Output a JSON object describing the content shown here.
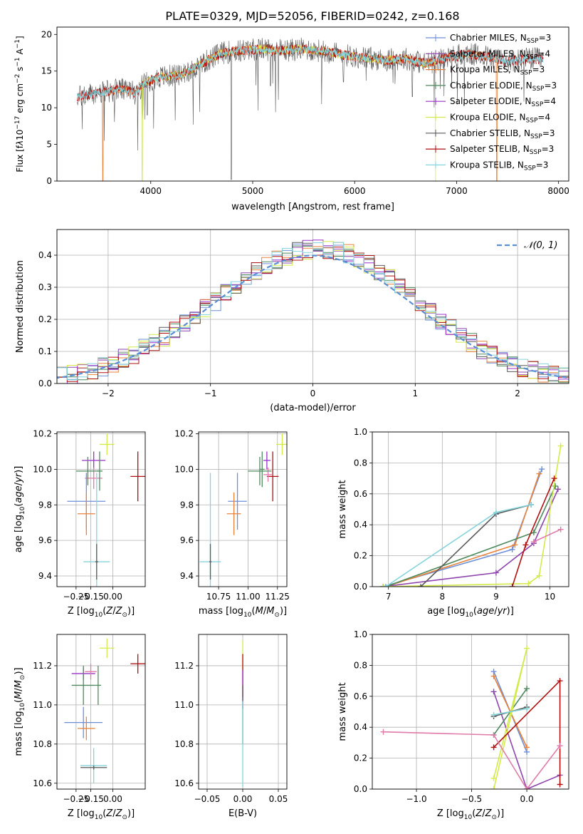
{
  "figure": {
    "title": "PLATE=0329, MJD=52056, FIBERID=0242, z=0.168"
  },
  "colors": {
    "chabrier_miles": "#6d8fd9",
    "salpeter_miles": "#8e44ad",
    "kroupa_miles": "#e8823a",
    "chabrier_elodie": "#4e8a5e",
    "salpeter_elodie": "#9b30c8",
    "kroupa_elodie": "#d4ea4b",
    "chabrier_stelib": "#5a5a5a",
    "salpeter_stelib": "#b01010",
    "kroupa_stelib": "#86d4db",
    "pink": "#e07aa8",
    "gaussian": "#5b8ed6"
  },
  "chart_data": [
    {
      "id": "spectrum",
      "type": "line",
      "xlabel": "wavelength [Angstrom, rest frame]",
      "ylabel_html": "Flux [f<tspan font-style=\"italic\">λ</tspan>10<tspan dy=\"-5\" font-size=\"9\">−17</tspan><tspan dy=\"5\"> erg cm</tspan><tspan dy=\"-5\" font-size=\"9\">−2</tspan><tspan dy=\"5\"> s</tspan><tspan dy=\"-5\" font-size=\"9\">−1</tspan><tspan dy=\"5\"> A</tspan><tspan dy=\"-5\" font-size=\"9\">−1</tspan><tspan dy=\"5\">]</tspan>",
      "xlim": [
        3080,
        8100
      ],
      "ylim": [
        0,
        21
      ],
      "xticks": [
        4000,
        5000,
        6000,
        7000,
        8000
      ],
      "yticks": [
        0,
        5,
        10,
        15,
        20
      ],
      "grid": false,
      "legend_placement": "right",
      "legend": [
        {
          "label": "Chabrier MILES, N",
          "sub": "SSP",
          "suffix": "=3",
          "color_key": "chabrier_miles"
        },
        {
          "label": "Salpeter MILES, N",
          "sub": "SSP",
          "suffix": "=4",
          "color_key": "salpeter_miles"
        },
        {
          "label": "Kroupa MILES, N",
          "sub": "SSP",
          "suffix": "=3",
          "color_key": "kroupa_miles"
        },
        {
          "label": "Chabrier ELODIE, N",
          "sub": "SSP",
          "suffix": "=3",
          "color_key": "chabrier_elodie"
        },
        {
          "label": "Salpeter ELODIE, N",
          "sub": "SSP",
          "suffix": "=4",
          "color_key": "salpeter_elodie"
        },
        {
          "label": "Kroupa ELODIE, N",
          "sub": "SSP",
          "suffix": "=4",
          "color_key": "kroupa_elodie"
        },
        {
          "label": "Chabrier STELIB, N",
          "sub": "SSP",
          "suffix": "=3",
          "color_key": "chabrier_stelib"
        },
        {
          "label": "Salpeter STELIB, N",
          "sub": "SSP",
          "suffix": "=3",
          "color_key": "salpeter_stelib"
        },
        {
          "label": "Kroupa STELIB, N",
          "sub": "SSP",
          "suffix": "=3",
          "color_key": "kroupa_stelib"
        }
      ],
      "continuum": {
        "x": [
          3280,
          3500,
          3700,
          3850,
          3950,
          4100,
          4300,
          4500,
          4700,
          4900,
          5100,
          5300,
          5500,
          5700,
          5900,
          6100,
          6300,
          6500,
          6700,
          6900,
          7100,
          7300,
          7500,
          7700,
          7850
        ],
        "y": [
          11.5,
          12.0,
          12.5,
          12.0,
          13.5,
          14.2,
          14.5,
          16.0,
          17.5,
          17.8,
          18.0,
          17.8,
          18.0,
          17.7,
          17.2,
          16.8,
          16.5,
          16.7,
          16.0,
          16.8,
          17.3,
          17.0,
          16.3,
          16.7,
          16.6
        ]
      },
      "series": [
        {
          "name": "data",
          "x_start": 3280,
          "x_end": 7850,
          "noise": 1.6,
          "color_key": "chabrier_stelib",
          "drops": [
            [
              3920,
              8.5
            ],
            [
              3965,
              9.0
            ],
            [
              4790,
              0.2
            ],
            [
              5175,
              13.0
            ],
            [
              5890,
              13.5
            ],
            [
              6565,
              11.5
            ]
          ]
        },
        {
          "name": "Kroupa MILES",
          "x_start": 3520,
          "x_end": 7400,
          "noise": 0.6,
          "color_key": "kroupa_miles",
          "drops": [
            [
              3530,
              0.0
            ],
            [
              7395,
              0.0
            ]
          ]
        },
        {
          "name": "Kroupa ELODIE",
          "x_start": 3910,
          "x_end": 6800,
          "noise": 0.6,
          "color_key": "kroupa_elodie",
          "drops": [
            [
              3915,
              0.0
            ],
            [
              6795,
              0.0
            ]
          ]
        },
        {
          "name": "Salpeter STELIB",
          "x_start": 3280,
          "x_end": 7850,
          "noise": 0.7,
          "color_key": "salpeter_stelib",
          "drops": []
        },
        {
          "name": "Kroupa STELIB",
          "x_start": 3280,
          "x_end": 7850,
          "noise": 0.5,
          "color_key": "kroupa_stelib",
          "drops": []
        }
      ]
    },
    {
      "id": "residuals",
      "type": "histogram",
      "xlabel": "(data-model)/error",
      "ylabel": "Normed distribution",
      "xlim": [
        -2.5,
        2.5
      ],
      "ylim": [
        0,
        0.48
      ],
      "xticks": [
        -2,
        -1,
        0,
        1,
        2
      ],
      "yticks": [
        0.0,
        0.1,
        0.2,
        0.3,
        0.4
      ],
      "grid": true,
      "legend_placement": "upper right",
      "legend_label": "N(0,1)",
      "bin_width": 0.1,
      "n_series": 9
    },
    {
      "id": "age_vs_Z",
      "type": "errorbar",
      "xlabel": "Z [log10(Z/Z⊙)]",
      "ylabel": "age  [log10(age/yr)]",
      "xlim": [
        -0.38,
        0.22
      ],
      "ylim": [
        9.34,
        10.21
      ],
      "xticks": [
        -0.25,
        -0.15,
        0.0
      ],
      "xticklabels": [
        "−0.25",
        "−0.15",
        "0.00"
      ],
      "yticks": [
        9.4,
        9.6,
        9.8,
        10.0,
        10.2
      ],
      "grid": true,
      "points": [
        {
          "x": -0.04,
          "y": 10.14,
          "xerr": 0.05,
          "yerr": 0.06,
          "color_key": "kroupa_elodie"
        },
        {
          "x": 0.17,
          "y": 9.96,
          "xerr": 0.05,
          "yerr": 0.14,
          "color_key": "salpeter_stelib"
        },
        {
          "x": -0.13,
          "y": 10.05,
          "xerr": 0.08,
          "yerr": 0.05,
          "color_key": "salpeter_elodie"
        },
        {
          "x": -0.13,
          "y": 9.95,
          "xerr": 0.06,
          "yerr": 0.06,
          "color_key": "pink"
        },
        {
          "x": -0.17,
          "y": 9.99,
          "xerr": 0.08,
          "yerr": 0.08,
          "color_key": "chabrier_elodie"
        },
        {
          "x": -0.09,
          "y": 9.99,
          "xerr": 0.02,
          "yerr": 0.11,
          "color_key": "chabrier_elodie"
        },
        {
          "x": -0.18,
          "y": 9.82,
          "xerr": 0.13,
          "yerr": 0.16,
          "color_key": "chabrier_miles"
        },
        {
          "x": -0.18,
          "y": 9.75,
          "xerr": 0.06,
          "yerr": 0.12,
          "color_key": "kroupa_miles"
        },
        {
          "x": -0.11,
          "y": 9.48,
          "xerr": 0.09,
          "yerr": 0.5,
          "color_key": "kroupa_stelib"
        },
        {
          "x": -0.11,
          "y": 9.48,
          "xerr": 0.01,
          "yerr": 0.1,
          "color_key": "chabrier_stelib"
        }
      ]
    },
    {
      "id": "age_vs_mass",
      "type": "errorbar",
      "xlabel": "mass [log10(M/M⊙)]",
      "ylabel": "",
      "xlim": [
        10.58,
        11.33
      ],
      "ylim": [
        9.34,
        10.21
      ],
      "xticks": [
        10.75,
        11.0,
        11.25
      ],
      "xticklabels": [
        "10.75",
        "11.00",
        "11.25"
      ],
      "yticks": [
        9.4,
        9.6,
        9.8,
        10.0,
        10.2
      ],
      "grid": true,
      "points": [
        {
          "x": 11.29,
          "y": 10.14,
          "xerr": 0.05,
          "yerr": 0.06,
          "color_key": "kroupa_elodie"
        },
        {
          "x": 11.21,
          "y": 9.96,
          "xerr": 0.05,
          "yerr": 0.14,
          "color_key": "salpeter_stelib"
        },
        {
          "x": 11.16,
          "y": 10.05,
          "xerr": 0.03,
          "yerr": 0.05,
          "color_key": "salpeter_elodie"
        },
        {
          "x": 11.17,
          "y": 9.97,
          "xerr": 0.04,
          "yerr": 0.04,
          "color_key": "pink"
        },
        {
          "x": 11.1,
          "y": 9.99,
          "xerr": 0.1,
          "yerr": 0.08,
          "color_key": "chabrier_elodie"
        },
        {
          "x": 11.12,
          "y": 10.0,
          "xerr": 0.02,
          "yerr": 0.1,
          "color_key": "chabrier_elodie"
        },
        {
          "x": 10.91,
          "y": 9.82,
          "xerr": 0.08,
          "yerr": 0.16,
          "color_key": "chabrier_miles"
        },
        {
          "x": 10.88,
          "y": 9.75,
          "xerr": 0.06,
          "yerr": 0.12,
          "color_key": "kroupa_miles"
        },
        {
          "x": 10.68,
          "y": 9.48,
          "xerr": 0.09,
          "yerr": 0.5,
          "color_key": "kroupa_stelib"
        },
        {
          "x": 10.68,
          "y": 9.48,
          "xerr": 0.01,
          "yerr": 0.1,
          "color_key": "chabrier_stelib"
        }
      ]
    },
    {
      "id": "mw_vs_age",
      "type": "line",
      "xlabel": "age  [log10(age/yr)]",
      "ylabel": "mass weight",
      "xlim": [
        6.7,
        10.35
      ],
      "ylim": [
        0,
        1.0
      ],
      "xticks": [
        7,
        8,
        9,
        10
      ],
      "yticks": [
        0.0,
        0.2,
        0.4,
        0.6,
        0.8,
        1.0
      ],
      "grid": true,
      "series": [
        {
          "color_key": "chabrier_miles",
          "x": [
            6.9,
            9.3,
            9.85
          ],
          "y": [
            0.0,
            0.24,
            0.76
          ]
        },
        {
          "color_key": "kroupa_miles",
          "x": [
            6.95,
            9.35,
            9.8
          ],
          "y": [
            0.0,
            0.27,
            0.73
          ]
        },
        {
          "color_key": "salpeter_miles",
          "x": [
            6.9,
            9.0,
            9.7,
            10.15
          ],
          "y": [
            0.0,
            0.09,
            0.28,
            0.63
          ]
        },
        {
          "color_key": "chabrier_elodie",
          "x": [
            6.95,
            9.7,
            10.1
          ],
          "y": [
            0.0,
            0.35,
            0.65
          ]
        },
        {
          "color_key": "kroupa_elodie",
          "x": [
            6.9,
            9.6,
            9.8,
            10.2
          ],
          "y": [
            0.0,
            0.02,
            0.07,
            0.91
          ]
        },
        {
          "color_key": "salpeter_stelib",
          "x": [
            9.3,
            9.55,
            10.08
          ],
          "y": [
            0.0,
            0.27,
            0.7
          ]
        },
        {
          "color_key": "chabrier_stelib",
          "x": [
            7.6,
            9.0,
            9.65
          ],
          "y": [
            0.0,
            0.47,
            0.53
          ]
        },
        {
          "color_key": "kroupa_stelib",
          "x": [
            6.95,
            9.0,
            9.65
          ],
          "y": [
            0.0,
            0.48,
            0.53
          ]
        },
        {
          "color_key": "pink",
          "x": [
            9.7,
            10.2
          ],
          "y": [
            0.29,
            0.37
          ]
        }
      ]
    },
    {
      "id": "mass_vs_Z",
      "type": "errorbar",
      "xlabel": "Z [log10(Z/Z⊙)]",
      "ylabel": "mass [log10(M/M⊙)]",
      "xlim": [
        -0.38,
        0.22
      ],
      "ylim": [
        10.57,
        11.36
      ],
      "xticks": [
        -0.25,
        -0.15,
        0.0
      ],
      "xticklabels": [
        "−0.25",
        "−0.15",
        "0.00"
      ],
      "yticks": [
        10.6,
        10.8,
        11.0,
        11.2
      ],
      "grid": true,
      "points": [
        {
          "x": -0.04,
          "y": 11.29,
          "xerr": 0.05,
          "yerr": 0.05,
          "color_key": "kroupa_elodie"
        },
        {
          "x": 0.17,
          "y": 11.21,
          "xerr": 0.05,
          "yerr": 0.05,
          "color_key": "salpeter_stelib"
        },
        {
          "x": -0.2,
          "y": 11.16,
          "xerr": 0.08,
          "yerr": 0.03,
          "color_key": "salpeter_elodie"
        },
        {
          "x": -0.15,
          "y": 11.17,
          "xerr": 0.04,
          "yerr": 0.04,
          "color_key": "pink"
        },
        {
          "x": -0.2,
          "y": 11.1,
          "xerr": 0.08,
          "yerr": 0.1,
          "color_key": "chabrier_elodie"
        },
        {
          "x": -0.1,
          "y": 11.1,
          "xerr": 0.02,
          "yerr": 0.1,
          "color_key": "chabrier_elodie"
        },
        {
          "x": -0.2,
          "y": 10.91,
          "xerr": 0.13,
          "yerr": 0.08,
          "color_key": "chabrier_miles"
        },
        {
          "x": -0.18,
          "y": 10.88,
          "xerr": 0.06,
          "yerr": 0.06,
          "color_key": "kroupa_miles"
        },
        {
          "x": -0.13,
          "y": 10.69,
          "xerr": 0.09,
          "yerr": 0.09,
          "color_key": "kroupa_stelib"
        },
        {
          "x": -0.13,
          "y": 10.68,
          "xerr": 0.09,
          "yerr": 0.01,
          "color_key": "chabrier_stelib"
        }
      ]
    },
    {
      "id": "mass_vs_ebv",
      "type": "errorbar",
      "xlabel": "E(B-V)",
      "ylabel": "",
      "xlim": [
        -0.062,
        0.062
      ],
      "ylim": [
        10.57,
        11.36
      ],
      "xticks": [
        -0.05,
        0.0,
        0.05
      ],
      "xticklabels": [
        "−0.05",
        "0.00",
        "0.05"
      ],
      "yticks": [
        10.6,
        10.8,
        11.0,
        11.2
      ],
      "grid": true,
      "points": [
        {
          "x": 0.0,
          "y": 11.25,
          "xerr": 0.0,
          "yerr": 0.08,
          "color_key": "kroupa_elodie"
        },
        {
          "x": 0.0,
          "y": 11.15,
          "xerr": 0.0,
          "yerr": 0.11,
          "color_key": "salpeter_stelib"
        },
        {
          "x": 0.0,
          "y": 11.08,
          "xerr": 0.0,
          "yerr": 0.1,
          "color_key": "salpeter_elodie"
        },
        {
          "x": 0.0,
          "y": 10.95,
          "xerr": 0.0,
          "yerr": 0.15,
          "color_key": "chabrier_stelib"
        },
        {
          "x": 0.0,
          "y": 10.8,
          "xerr": 0.0,
          "yerr": 0.22,
          "color_key": "kroupa_stelib"
        }
      ]
    },
    {
      "id": "mw_vs_Z",
      "type": "line",
      "xlabel": "Z [log10(Z/Z⊙)]",
      "ylabel": "mass weight",
      "xlim": [
        -1.4,
        0.38
      ],
      "ylim": [
        0,
        1.0
      ],
      "xticks": [
        -1.0,
        -0.5,
        0.0
      ],
      "xticklabels": [
        "−1.0",
        "−0.5",
        "0.0"
      ],
      "yticks": [
        0.0,
        0.2,
        0.4,
        0.6,
        0.8,
        1.0
      ],
      "grid": true,
      "series": [
        {
          "color_key": "chabrier_miles",
          "x": [
            -0.3,
            0.0
          ],
          "y": [
            0.76,
            0.24
          ]
        },
        {
          "color_key": "kroupa_miles",
          "x": [
            -0.3,
            0.0
          ],
          "y": [
            0.73,
            0.27
          ]
        },
        {
          "color_key": "salpeter_miles",
          "x": [
            -0.3,
            0.0,
            0.3
          ],
          "y": [
            0.63,
            0.0,
            0.09
          ]
        },
        {
          "color_key": "chabrier_elodie",
          "x": [
            -0.3,
            0.0
          ],
          "y": [
            0.35,
            0.65
          ]
        },
        {
          "color_key": "kroupa_elodie",
          "x": [
            -0.3,
            0.0,
            -0.3
          ],
          "y": [
            0.0,
            0.91,
            0.07
          ]
        },
        {
          "color_key": "salpeter_stelib",
          "x": [
            -0.3,
            0.3,
            0.3
          ],
          "y": [
            0.27,
            0.7,
            0.03
          ]
        },
        {
          "color_key": "chabrier_stelib",
          "x": [
            -0.3,
            0.0
          ],
          "y": [
            0.47,
            0.53
          ]
        },
        {
          "color_key": "kroupa_stelib",
          "x": [
            -0.3,
            0.0
          ],
          "y": [
            0.48,
            0.52
          ]
        },
        {
          "color_key": "pink",
          "x": [
            -1.3,
            -0.3,
            0.0,
            0.3
          ],
          "y": [
            0.37,
            0.35,
            0.0,
            0.28
          ]
        }
      ]
    }
  ]
}
